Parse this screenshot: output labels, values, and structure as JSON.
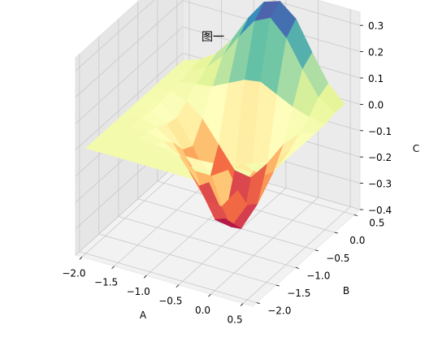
{
  "chart_data": {
    "type": "surface3d",
    "title": "图一",
    "xlabel": "A",
    "ylabel": "B",
    "zlabel": "C",
    "xlim": [
      -2.1,
      0.65
    ],
    "ylim": [
      -2.1,
      0.65
    ],
    "zlim": [
      -0.4,
      0.35
    ],
    "xticks": [
      "−2.0",
      "−1.5",
      "−1.0",
      "−0.5",
      "0.0",
      "0.5"
    ],
    "yticks": [
      "−2.0",
      "−1.5",
      "−1.0",
      "−0.5",
      "0.0",
      "0.5"
    ],
    "zticks": [
      "−0.4",
      "−0.3",
      "−0.2",
      "−0.1",
      "0.0",
      "0.1",
      "0.2",
      "0.3"
    ],
    "colormap": "Spectral",
    "grid": true,
    "surface": {
      "x": [
        -2.0,
        -1.75,
        -1.5,
        -1.25,
        -1.0,
        -0.75,
        -0.5,
        -0.25,
        0.0,
        0.25,
        0.5
      ],
      "y": [
        -2.0,
        -1.75,
        -1.5,
        -1.25,
        -1.0,
        -0.75,
        -0.5,
        -0.25,
        0.0,
        0.25,
        0.5
      ],
      "z": [
        [
          0.0,
          0.0,
          0.0,
          0.0,
          0.0,
          0.0,
          0.0,
          0.0,
          0.0,
          0.0,
          0.0
        ],
        [
          0.0,
          0.0,
          0.0,
          0.0,
          0.0,
          0.0,
          0.0,
          0.0,
          0.0,
          0.0,
          0.0
        ],
        [
          0.0,
          0.0,
          0.0,
          0.0,
          -0.005,
          -0.01,
          -0.01,
          -0.005,
          0.0,
          0.0,
          0.0
        ],
        [
          0.0,
          0.0,
          -0.005,
          -0.02,
          -0.06,
          -0.1,
          -0.1,
          -0.06,
          -0.02,
          0.0,
          0.0
        ],
        [
          0.0,
          -0.005,
          -0.02,
          -0.06,
          -0.15,
          -0.24,
          -0.25,
          -0.17,
          -0.08,
          -0.02,
          0.0
        ],
        [
          0.0,
          -0.01,
          -0.04,
          -0.12,
          -0.24,
          -0.35,
          -0.36,
          -0.26,
          -0.13,
          -0.04,
          0.0
        ],
        [
          0.0,
          -0.01,
          -0.05,
          -0.14,
          -0.26,
          -0.38,
          -0.4,
          -0.29,
          -0.15,
          -0.05,
          0.0
        ],
        [
          0.0,
          0.0,
          -0.02,
          -0.07,
          -0.15,
          -0.23,
          -0.24,
          -0.17,
          -0.08,
          -0.02,
          0.0
        ],
        [
          0.0,
          0.0,
          0.01,
          0.02,
          0.05,
          0.08,
          0.09,
          0.06,
          0.03,
          0.01,
          0.0
        ],
        [
          0.0,
          0.01,
          0.04,
          0.1,
          0.19,
          0.27,
          0.3,
          0.24,
          0.14,
          0.05,
          0.01
        ],
        [
          0.0,
          0.02,
          0.06,
          0.13,
          0.23,
          0.31,
          0.33,
          0.28,
          0.17,
          0.07,
          0.01
        ]
      ]
    }
  }
}
